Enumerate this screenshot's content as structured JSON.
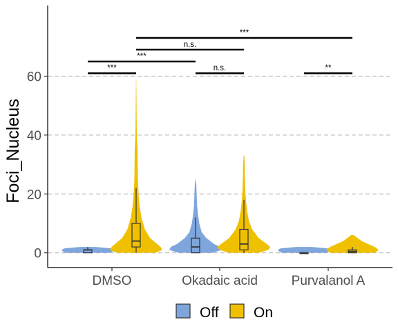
{
  "chart_data": {
    "type": "violin",
    "title": "",
    "xlabel": "",
    "ylabel": "Foci_Nucleus",
    "ylim": [
      -5,
      84
    ],
    "yticks": [
      0,
      20,
      40,
      60
    ],
    "grid": "y-dashed",
    "legend_position": "bottom",
    "categories": [
      "DMSO",
      "Okadaic acid",
      "Purvalanol A"
    ],
    "series": [
      {
        "name": "Off",
        "color": "#7EA6DC"
      },
      {
        "name": "On",
        "color": "#EFC000"
      }
    ],
    "groups": [
      {
        "category": "DMSO",
        "series": "Off",
        "max": 2,
        "box": {
          "min": 0,
          "q1": 0,
          "median": 1,
          "q3": 1,
          "max": 2
        },
        "density": [
          [
            0,
            0.85
          ],
          [
            0.5,
            0.95
          ],
          [
            1,
            1.0
          ],
          [
            1.5,
            0.9
          ],
          [
            2,
            0.3
          ]
        ]
      },
      {
        "category": "DMSO",
        "series": "On",
        "max": 59,
        "box": {
          "min": 0,
          "q1": 2,
          "median": 4,
          "q3": 10,
          "max": 22
        },
        "density": [
          [
            0,
            0.55
          ],
          [
            1,
            0.75
          ],
          [
            2,
            0.7
          ],
          [
            3,
            0.6
          ],
          [
            5,
            0.4
          ],
          [
            8,
            0.25
          ],
          [
            12,
            0.15
          ],
          [
            16,
            0.1
          ],
          [
            20,
            0.07
          ],
          [
            25,
            0.05
          ],
          [
            30,
            0.045
          ],
          [
            35,
            0.04
          ],
          [
            40,
            0.02
          ],
          [
            45,
            0.015
          ],
          [
            52,
            0.01
          ],
          [
            59,
            0.003
          ]
        ]
      },
      {
        "category": "Okadaic acid",
        "series": "Off",
        "max": 25,
        "box": {
          "min": 0,
          "q1": 0,
          "median": 2,
          "q3": 5,
          "max": 12
        },
        "density": [
          [
            0,
            0.55
          ],
          [
            1,
            0.85
          ],
          [
            2,
            0.8
          ],
          [
            3,
            0.6
          ],
          [
            5,
            0.35
          ],
          [
            7,
            0.2
          ],
          [
            10,
            0.12
          ],
          [
            13,
            0.08
          ],
          [
            16,
            0.05
          ],
          [
            20,
            0.035
          ],
          [
            23,
            0.025
          ],
          [
            25,
            0.005
          ]
        ]
      },
      {
        "category": "Okadaic acid",
        "series": "On",
        "max": 33,
        "box": {
          "min": 0,
          "q1": 1,
          "median": 3,
          "q3": 8,
          "max": 18
        },
        "density": [
          [
            0,
            0.45
          ],
          [
            1,
            0.75
          ],
          [
            2,
            0.8
          ],
          [
            3,
            0.7
          ],
          [
            5,
            0.45
          ],
          [
            8,
            0.25
          ],
          [
            11,
            0.15
          ],
          [
            14,
            0.1
          ],
          [
            18,
            0.06
          ],
          [
            22,
            0.04
          ],
          [
            26,
            0.03
          ],
          [
            30,
            0.025
          ],
          [
            33,
            0.01
          ]
        ]
      },
      {
        "category": "Purvalanol A",
        "series": "Off",
        "max": 2,
        "box": {
          "min": 0,
          "q1": 0,
          "median": 0,
          "q3": 0,
          "max": 0
        },
        "density": [
          [
            0,
            0.85
          ],
          [
            0.5,
            0.95
          ],
          [
            1,
            1.0
          ],
          [
            1.5,
            0.9
          ],
          [
            2,
            0.3
          ]
        ]
      },
      {
        "category": "Purvalanol A",
        "series": "On",
        "max": 6,
        "box": {
          "min": 0,
          "q1": 0,
          "median": 0.5,
          "q3": 1,
          "max": 2
        },
        "density": [
          [
            0,
            0.85
          ],
          [
            1,
            1.0
          ],
          [
            2,
            0.85
          ],
          [
            3,
            0.6
          ],
          [
            4,
            0.35
          ],
          [
            5,
            0.2
          ],
          [
            6,
            0.05
          ]
        ]
      }
    ],
    "comparisons": [
      {
        "from": "DMSO|Off",
        "to": "DMSO|On",
        "y": 61,
        "label": "***"
      },
      {
        "from": "Okadaic acid|Off",
        "to": "Okadaic acid|On",
        "y": 61,
        "label": "n.s."
      },
      {
        "from": "Purvalanol A|Off",
        "to": "Purvalanol A|On",
        "y": 61,
        "label": "**"
      },
      {
        "from": "DMSO|Off",
        "to": "Okadaic acid|Off",
        "y": 65,
        "label": "***"
      },
      {
        "from": "DMSO|On",
        "to": "Okadaic acid|On",
        "y": 69,
        "label": "n.s."
      },
      {
        "from": "DMSO|On",
        "to": "Purvalanol A|On",
        "y": 73,
        "label": "***"
      }
    ]
  }
}
